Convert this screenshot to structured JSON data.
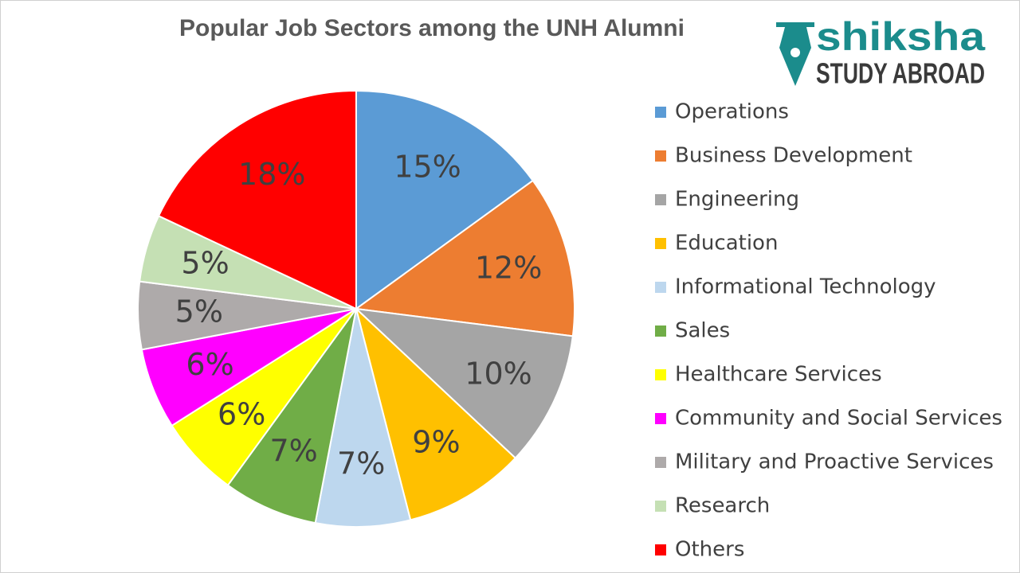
{
  "chart_data": {
    "type": "pie",
    "title": "Popular Job Sectors among the UNH Alumni",
    "categories": [
      "Operations",
      "Business Development",
      "Engineering",
      "Education",
      "Informational Technology",
      "Sales",
      "Healthcare Services",
      "Community and Social Services",
      "Military and Proactive Services",
      "Research",
      "Others"
    ],
    "values": [
      15,
      12,
      10,
      9,
      7,
      7,
      6,
      6,
      5,
      5,
      18
    ],
    "value_labels": [
      "15%",
      "12%",
      "10%",
      "9%",
      "7%",
      "7%",
      "6%",
      "6%",
      "5%",
      "5%",
      "18%"
    ],
    "colors": [
      "#5b9bd5",
      "#ed7d31",
      "#a5a5a5",
      "#ffc000",
      "#bdd7ee",
      "#70ad47",
      "#ffff00",
      "#ff00ff",
      "#aeaaaa",
      "#c5e0b4",
      "#ff0000"
    ],
    "legend": "right"
  },
  "logo": {
    "name": "shiksha",
    "tagline": "STUDY ABROAD"
  }
}
